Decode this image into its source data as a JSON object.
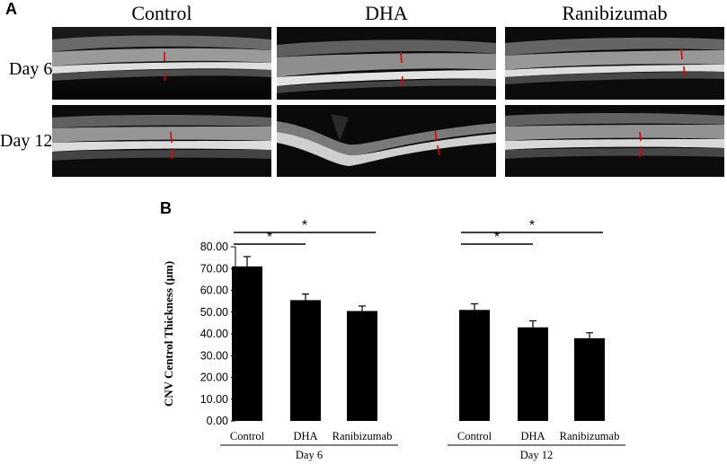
{
  "panel_a": {
    "label": "A",
    "columns": [
      "Control",
      "DHA",
      "Ranibizumab"
    ],
    "rows": [
      "Day 6",
      "Day 12"
    ]
  },
  "panel_b": {
    "label": "B"
  },
  "chart_data": {
    "type": "bar",
    "title": "",
    "ylabel": "CNV Centrol Thickness (μm)",
    "ylim": [
      0,
      80
    ],
    "yticks": [
      "0.00",
      "10.00",
      "20.00",
      "30.00",
      "40.00",
      "50.00",
      "60.00",
      "70.00",
      "80.00"
    ],
    "groups": [
      {
        "name": "Day 6",
        "categories": [
          "Control",
          "DHA",
          "Ranibizumab"
        ],
        "values": [
          71.0,
          55.5,
          50.5
        ],
        "errors": [
          4.5,
          2.8,
          2.3
        ]
      },
      {
        "name": "Day 12",
        "categories": [
          "Control",
          "DHA",
          "Ranibizumab"
        ],
        "values": [
          51.0,
          43.0,
          38.0
        ],
        "errors": [
          2.8,
          3.0,
          2.5
        ]
      }
    ],
    "significance": [
      {
        "group": 0,
        "from": 0,
        "to": 1,
        "label": "*"
      },
      {
        "group": 0,
        "from": 0,
        "to": 2,
        "label": "*"
      },
      {
        "group": 1,
        "from": 0,
        "to": 1,
        "label": "*"
      },
      {
        "group": 1,
        "from": 0,
        "to": 2,
        "label": "*"
      }
    ],
    "bar_color": "#000000",
    "grid": false
  }
}
